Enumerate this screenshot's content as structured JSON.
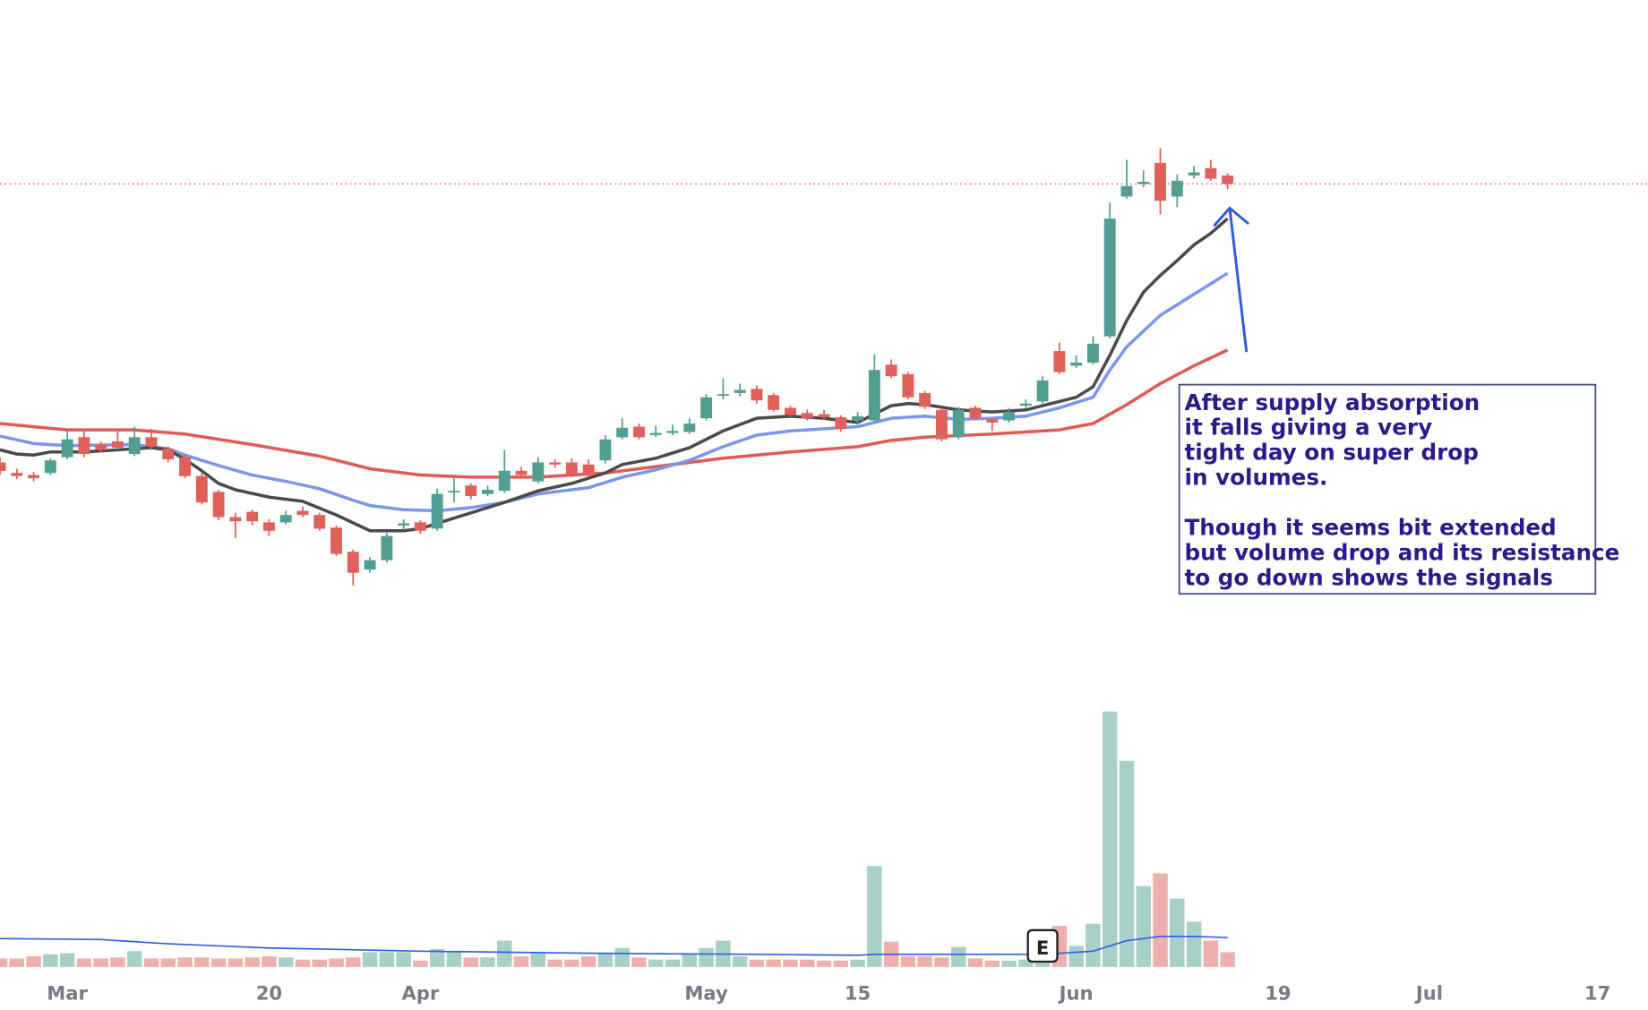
{
  "chart_data": {
    "type": "candlestick",
    "x": [
      0,
      1,
      2,
      3,
      4,
      5,
      6,
      7,
      8,
      9,
      10,
      11,
      12,
      13,
      14,
      15,
      16,
      17,
      18,
      19,
      20,
      21,
      22,
      23,
      24,
      25,
      26,
      27,
      28,
      29,
      30,
      31,
      32,
      33,
      34,
      35,
      36,
      37,
      38,
      39,
      40,
      41,
      42,
      43,
      44,
      45,
      46,
      47,
      48,
      49,
      50,
      51,
      52,
      53,
      54,
      55,
      56,
      57,
      58,
      59,
      60,
      61,
      62,
      63,
      64,
      65,
      66,
      67,
      68,
      69,
      70,
      71,
      72,
      73
    ],
    "open": [
      16.0,
      15.0,
      14.8,
      15.0,
      16.5,
      18.4,
      17.7,
      18.0,
      16.8,
      18.4,
      17.3,
      16.5,
      14.7,
      13.2,
      10.8,
      11.3,
      10.3,
      10.3,
      11.4,
      11.0,
      9.8,
      7.5,
      5.8,
      6.7,
      10.0,
      10.3,
      9.7,
      13.2,
      13.8,
      13.0,
      13.3,
      15.2,
      14.2,
      16.0,
      16.0,
      15.8,
      16.2,
      18.4,
      19.4,
      18.6,
      18.8,
      18.9,
      20.2,
      22.4,
      22.6,
      23.0,
      22.4,
      21.2,
      20.7,
      20.6,
      20.3,
      20.0,
      20.0,
      25.3,
      24.4,
      22.6,
      21.0,
      18.4,
      21.2,
      20.1,
      20.0,
      21.4,
      21.8,
      26.6,
      25.2,
      25.5,
      28.0,
      41.3,
      42.5,
      44.5,
      41.3,
      43.3,
      44.0,
      43.3
    ],
    "high": [
      16.5,
      15.4,
      15.1,
      16.4,
      19.0,
      19.2,
      18.0,
      19.2,
      19.4,
      19.2,
      17.5,
      16.8,
      15.0,
      13.4,
      11.2,
      11.5,
      10.6,
      11.4,
      11.8,
      11.2,
      10.0,
      7.7,
      7.0,
      9.3,
      10.6,
      10.5,
      13.5,
      14.5,
      14.0,
      13.8,
      17.2,
      15.6,
      16.5,
      16.3,
      16.4,
      16.3,
      18.6,
      20.2,
      19.7,
      19.5,
      19.6,
      20.2,
      22.5,
      24.0,
      23.5,
      23.3,
      22.6,
      21.4,
      21.0,
      21.0,
      20.5,
      20.8,
      26.3,
      25.8,
      24.6,
      22.8,
      21.2,
      21.3,
      21.4,
      20.3,
      21.2,
      22.0,
      24.2,
      27.4,
      26.2,
      28.0,
      40.7,
      44.8,
      43.8,
      45.9,
      43.4,
      44.2,
      44.8,
      43.5
    ],
    "low": [
      14.8,
      14.4,
      14.2,
      14.8,
      16.3,
      16.5,
      17.0,
      17.2,
      16.6,
      17.2,
      16.0,
      14.5,
      12.0,
      10.5,
      8.8,
      10.0,
      9.0,
      10.1,
      10.8,
      9.5,
      7.1,
      4.3,
      5.5,
      6.5,
      9.6,
      9.2,
      9.5,
      12.2,
      12.5,
      12.8,
      13.1,
      14.6,
      14.0,
      15.5,
      14.6,
      14.6,
      15.9,
      18.2,
      18.2,
      18.4,
      18.6,
      18.7,
      20.0,
      22.0,
      22.3,
      21.6,
      20.8,
      20.3,
      20.0,
      20.1,
      18.9,
      19.6,
      19.8,
      24.0,
      22.0,
      21.1,
      18.0,
      18.2,
      20.0,
      19.0,
      19.8,
      21.2,
      21.6,
      24.4,
      25.0,
      25.3,
      27.8,
      41.1,
      42.2,
      39.6,
      40.3,
      43.0,
      42.8,
      42.0
    ],
    "close": [
      15.2,
      14.7,
      14.5,
      16.2,
      18.2,
      16.8,
      17.2,
      17.4,
      18.4,
      17.5,
      16.3,
      14.7,
      12.2,
      10.8,
      10.4,
      10.4,
      9.5,
      11.0,
      11.0,
      9.7,
      7.3,
      5.5,
      6.7,
      9.0,
      10.2,
      9.5,
      13.0,
      13.3,
      12.8,
      13.4,
      15.2,
      14.8,
      16.0,
      15.8,
      14.8,
      14.8,
      18.2,
      19.3,
      18.4,
      18.8,
      19.0,
      19.7,
      22.2,
      22.5,
      22.9,
      21.9,
      21.0,
      20.5,
      20.2,
      20.3,
      19.2,
      20.4,
      24.8,
      24.2,
      22.2,
      21.3,
      18.2,
      21.0,
      20.2,
      19.8,
      20.8,
      21.6,
      23.8,
      24.6,
      25.5,
      27.3,
      39.2,
      42.3,
      42.7,
      40.9,
      42.8,
      43.6,
      43.0,
      42.5
    ],
    "up_color": "#529f92",
    "down_color": "#e0605a",
    "xlim": [
      0,
      98
    ],
    "ylim": [
      0,
      60
    ],
    "xticks": [
      {
        "value": 4,
        "label": "Mar"
      },
      {
        "value": 16,
        "label": "20"
      },
      {
        "value": 25,
        "label": "Apr"
      },
      {
        "value": 42,
        "label": "May"
      },
      {
        "value": 51,
        "label": "15"
      },
      {
        "value": 64,
        "label": "Jun"
      },
      {
        "value": 76,
        "label": "19"
      },
      {
        "value": 85,
        "label": "Jul"
      },
      {
        "value": 95,
        "label": "17"
      }
    ],
    "price_line": {
      "value": 42.5,
      "color": "#e0605a"
    },
    "moving_averages": [
      {
        "color": "#e25a55",
        "x": [
          0,
          4,
          8,
          11,
          15,
          19,
          22,
          25,
          28,
          32,
          36,
          39,
          43,
          47,
          51,
          53,
          55,
          59,
          63,
          65,
          67,
          69,
          71,
          73
        ],
        "values": [
          19.7,
          19.1,
          19.1,
          18.7,
          17.7,
          16.6,
          15.4,
          14.8,
          14.6,
          14.6,
          15.0,
          15.6,
          16.4,
          17.0,
          17.5,
          18.1,
          18.4,
          18.7,
          19.1,
          19.7,
          21.5,
          23.5,
          25.2,
          26.7
        ]
      },
      {
        "color": "#7b96ec",
        "x": [
          0,
          2,
          4,
          8,
          10,
          11,
          13,
          15,
          17,
          19,
          21,
          22,
          24,
          26,
          28,
          30,
          32,
          35,
          37,
          39,
          41,
          43,
          45,
          47,
          49,
          51,
          53,
          55,
          57,
          59,
          61,
          63,
          65,
          66,
          67,
          68,
          69,
          70,
          71,
          72,
          73
        ],
        "values": [
          18.5,
          17.8,
          17.6,
          17.7,
          17.3,
          16.7,
          15.7,
          14.8,
          14.2,
          13.5,
          12.4,
          11.9,
          11.5,
          11.4,
          11.7,
          12.2,
          13.0,
          13.6,
          14.6,
          15.3,
          16.2,
          17.5,
          18.6,
          19.0,
          19.2,
          19.4,
          20.2,
          20.4,
          20.1,
          20.2,
          20.4,
          21.2,
          22.2,
          24.8,
          27.0,
          28.5,
          30.0,
          31.0,
          32.0,
          33.0,
          34.0
        ]
      },
      {
        "color": "#4a4a4a",
        "x": [
          0,
          1,
          2,
          3,
          4,
          5,
          7,
          9,
          10,
          11,
          12,
          13,
          14,
          16,
          18,
          20,
          22,
          24,
          25,
          26,
          28,
          30,
          32,
          34,
          36,
          37,
          39,
          41,
          43,
          45,
          47,
          49,
          51,
          53,
          54,
          55,
          57,
          59,
          61,
          62,
          64,
          65,
          66,
          67,
          68,
          69,
          70,
          71,
          72,
          73
        ],
        "values": [
          17.2,
          16.8,
          16.7,
          17.0,
          17.0,
          17.0,
          17.2,
          17.4,
          17.2,
          16.3,
          15.2,
          14.0,
          13.4,
          12.7,
          12.3,
          11.0,
          9.5,
          9.5,
          9.7,
          10.2,
          11.2,
          12.2,
          13.3,
          14.0,
          15.0,
          15.8,
          16.4,
          17.4,
          19.0,
          20.2,
          20.4,
          20.2,
          19.8,
          21.4,
          21.6,
          21.5,
          21.0,
          20.8,
          21.0,
          21.4,
          22.2,
          23.2,
          26.2,
          29.5,
          32.2,
          33.8,
          35.2,
          36.7,
          37.8,
          39.2
        ]
      }
    ],
    "volume": {
      "values": [
        8,
        8,
        10,
        12,
        13,
        8,
        8,
        9,
        15,
        8,
        8,
        9,
        9,
        8,
        8,
        9,
        10,
        9,
        7,
        7,
        8,
        9,
        14,
        14,
        14,
        6,
        17,
        15,
        9,
        9,
        25,
        10,
        14,
        7,
        7,
        10,
        13,
        18,
        9,
        7,
        7,
        12,
        18,
        25,
        10,
        7,
        7,
        7,
        7,
        6,
        6,
        7,
        96,
        24,
        10,
        10,
        9,
        19,
        8,
        6,
        6,
        7,
        10,
        39,
        20,
        41,
        243,
        196,
        77,
        89,
        65,
        43,
        25,
        14
      ],
      "ylim": [
        0,
        260
      ],
      "ma": {
        "color": "#2f5fe0",
        "x": [
          0,
          6,
          10,
          16,
          25,
          35,
          45,
          51,
          52,
          62,
          65,
          67,
          69,
          71,
          73
        ],
        "values": [
          27,
          26,
          22,
          18,
          15,
          13,
          12,
          11,
          12,
          12,
          15,
          25,
          29,
          29,
          28
        ]
      }
    },
    "earnings": {
      "x": 62,
      "label": "E"
    },
    "annotation": {
      "paragraphs": [
        [
          "After supply absorption",
          "it falls giving a very",
          "tight day on super drop",
          "in volumes."
        ],
        [
          "Though it seems bit extended",
          "but volume drop and its resistance",
          "to go down shows the signals"
        ]
      ]
    }
  }
}
